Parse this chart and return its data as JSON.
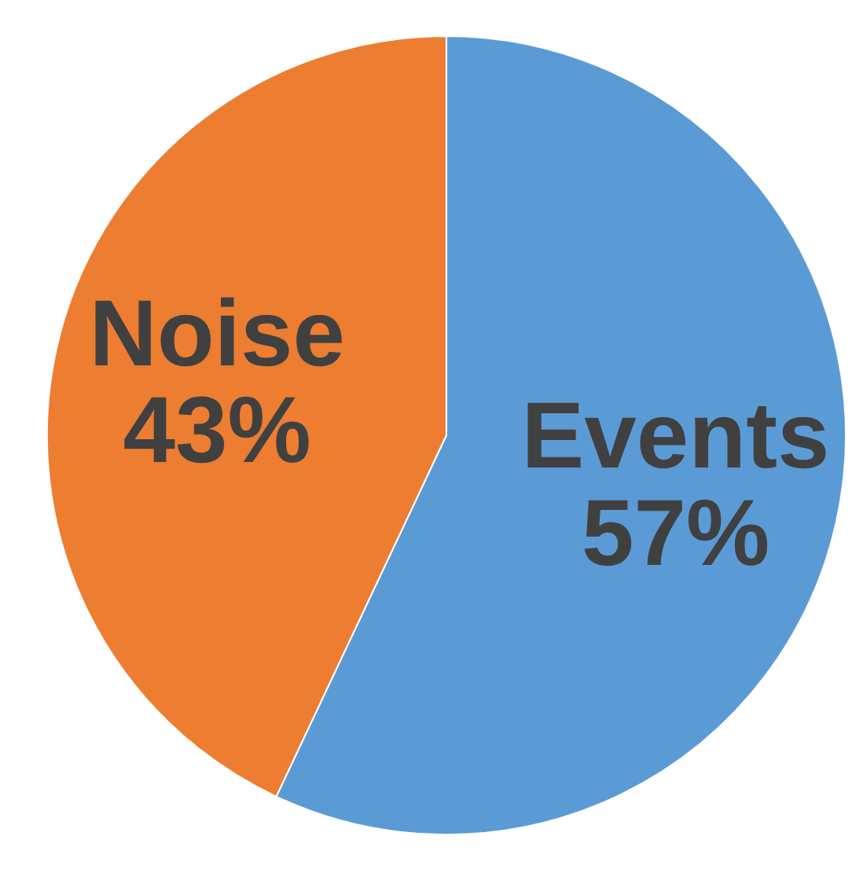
{
  "chart_data": {
    "type": "pie",
    "categories": [
      "Events",
      "Noise"
    ],
    "values": [
      57,
      43
    ],
    "value_labels": [
      "57%",
      "43%"
    ],
    "colors": [
      "#5b9bd5",
      "#ed7d31"
    ],
    "legend": false
  }
}
